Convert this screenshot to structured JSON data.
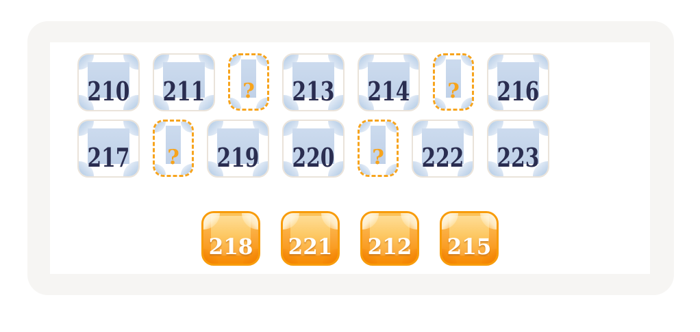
{
  "colors": {
    "accent_orange": "#f7a41d",
    "chip_border_orange": "#f89c0b",
    "chip_gradient_top": "#fedd96",
    "chip_gradient_bottom": "#f78c04",
    "tile_blue": "#c5d6ea",
    "tile_border": "#eae3da",
    "number_navy": "#2a2d50",
    "panel_gray": "#f6f5f3",
    "board_white": "#ffffff"
  },
  "board": {
    "rows": [
      {
        "cells": [
          {
            "type": "number",
            "label": "210"
          },
          {
            "type": "number",
            "label": "211"
          },
          {
            "type": "slot",
            "label": "?"
          },
          {
            "type": "number",
            "label": "213"
          },
          {
            "type": "number",
            "label": "214"
          },
          {
            "type": "slot",
            "label": "?"
          },
          {
            "type": "number",
            "label": "216"
          }
        ]
      },
      {
        "cells": [
          {
            "type": "number",
            "label": "217"
          },
          {
            "type": "slot",
            "label": "?"
          },
          {
            "type": "number",
            "label": "219"
          },
          {
            "type": "number",
            "label": "220"
          },
          {
            "type": "slot",
            "label": "?"
          },
          {
            "type": "number",
            "label": "222"
          },
          {
            "type": "number",
            "label": "223"
          }
        ]
      }
    ],
    "tray": {
      "tiles": [
        {
          "label": "218"
        },
        {
          "label": "221"
        },
        {
          "label": "212"
        },
        {
          "label": "215"
        }
      ]
    }
  }
}
